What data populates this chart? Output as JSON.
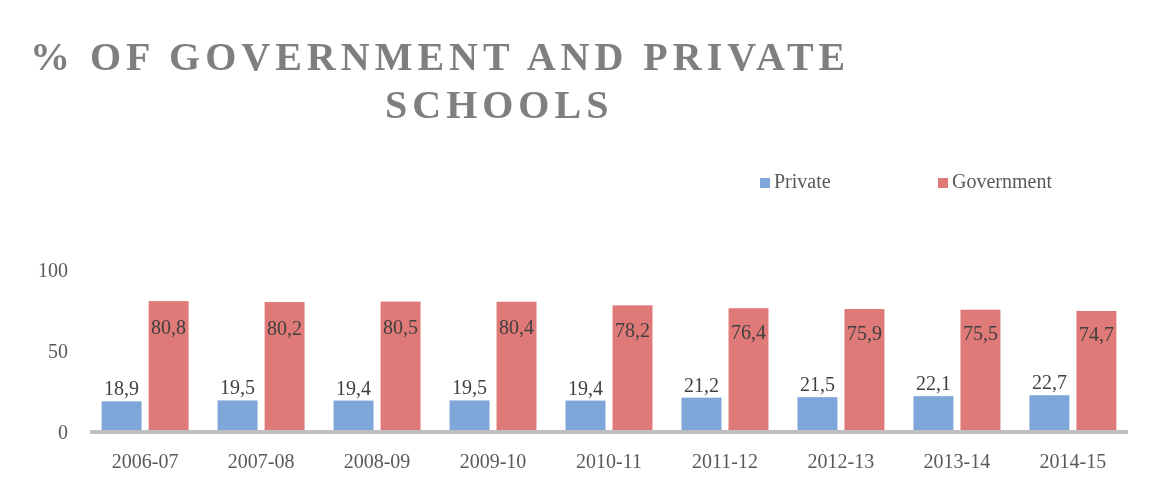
{
  "chart_data": {
    "type": "bar",
    "title": "% OF GOVERNMENT AND PRIVATE SCHOOLS",
    "categories": [
      "2006-07",
      "2007-08",
      "2008-09",
      "2009-10",
      "2010-11",
      "2011-12",
      "2012-13",
      "2013-14",
      "2014-15"
    ],
    "series": [
      {
        "name": "Private",
        "color": "#7ea6d8",
        "values": [
          18.9,
          19.5,
          19.4,
          19.5,
          19.4,
          21.2,
          21.5,
          22.1,
          22.7
        ],
        "value_labels": [
          "18,9",
          "19,5",
          "19,4",
          "19,5",
          "19,4",
          "21,2",
          "21,5",
          "22,1",
          "22,7"
        ]
      },
      {
        "name": "Government",
        "color": "#e07a78",
        "values": [
          80.8,
          80.2,
          80.5,
          80.4,
          78.2,
          76.4,
          75.9,
          75.5,
          74.7
        ],
        "value_labels": [
          "80,8",
          "80,2",
          "80,5",
          "80,4",
          "78,2",
          "76,4",
          "75,9",
          "75,5",
          "74,7"
        ]
      }
    ],
    "ylim": [
      0,
      100
    ],
    "yticks": [
      0,
      50,
      100
    ],
    "legend": "top right"
  }
}
